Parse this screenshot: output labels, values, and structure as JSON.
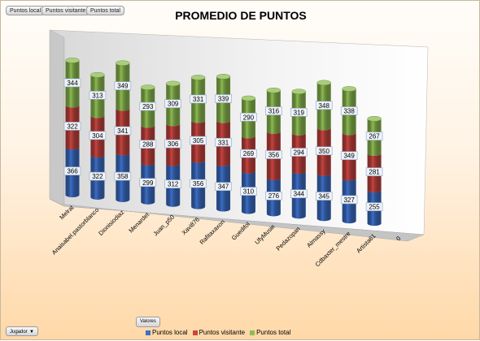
{
  "field_buttons": [
    "Puntos local",
    "Puntos visitante",
    "Puntos total"
  ],
  "valores_label": "Valores",
  "jugador_label": "Jugador",
  "dropdown_icon": "chevron-down-icon",
  "chart_data": {
    "type": "bar",
    "stacked": true,
    "style": "3d-cylinder",
    "title": "PROMEDIO DE PUNTOS",
    "xlabel": "",
    "ylabel": "",
    "categories": [
      "Melrat",
      "Anaisabel.pastorblanco",
      "Dionisiodiaz",
      "Menardet",
      "Juan_p50",
      "Xavi876",
      "Rafitaxaxon",
      "Guedifol",
      "UfyMusie",
      "Pedazopan",
      "Almassy",
      "Cdbaxter_mestre",
      "Artista61",
      "0"
    ],
    "series": [
      {
        "name": "Puntos local",
        "color": "#3d6fc8",
        "values": [
          366,
          322,
          358,
          299,
          312,
          356,
          347,
          310,
          276,
          344,
          345,
          327,
          255,
          0
        ]
      },
      {
        "name": "Puntos visitante",
        "color": "#c84540",
        "values": [
          322,
          304,
          341,
          288,
          306,
          305,
          331,
          269,
          356,
          294,
          350,
          349,
          281,
          0
        ]
      },
      {
        "name": "Puntos total",
        "color": "#8ebd52",
        "values": [
          344,
          313,
          349,
          293,
          309,
          331,
          339,
          290,
          316,
          319,
          348,
          338,
          267,
          0
        ]
      }
    ],
    "grid": false,
    "legend_position": "bottom"
  }
}
